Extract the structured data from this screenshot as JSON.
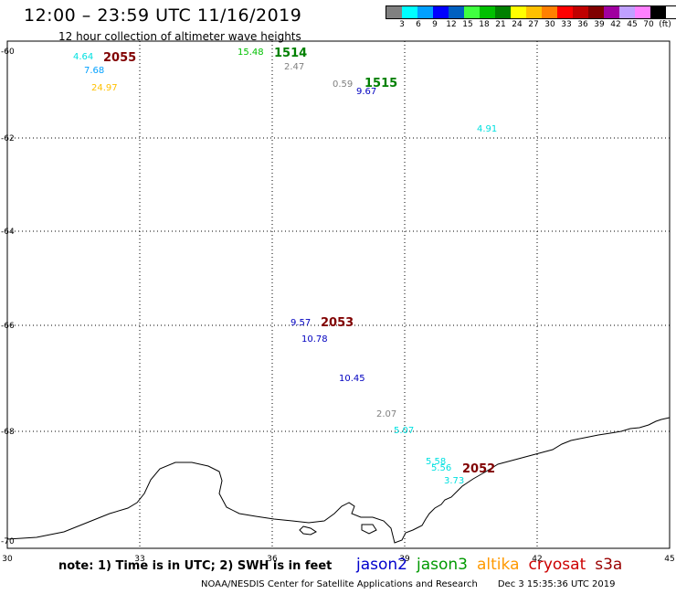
{
  "header": {
    "title": "12:00 – 23:59 UTC 11/16/2019",
    "subtitle": "12 hour collection of altimeter wave heights"
  },
  "legend": {
    "colors": [
      "#808080",
      "#00ffff",
      "#00a0ff",
      "#0000ff",
      "#0060c0",
      "#40ff40",
      "#00c000",
      "#008000",
      "#ffff00",
      "#ffc000",
      "#ff8000",
      "#ff0000",
      "#c00000",
      "#800000",
      "#a000a0",
      "#c0a0ff",
      "#ff80ff",
      "#000000"
    ],
    "labels": [
      "3",
      "6",
      "9",
      "12",
      "15",
      "18",
      "21",
      "24",
      "27",
      "30",
      "33",
      "36",
      "39",
      "42",
      "45",
      "70",
      "(ft)"
    ]
  },
  "map": {
    "lon_ticks": [
      "30",
      "33",
      "36",
      "39",
      "42",
      "45"
    ],
    "lat_ticks": [
      "-60",
      "-62",
      "-64",
      "-66",
      "-68",
      "-70"
    ]
  },
  "observations": [
    {
      "text": "4.64",
      "color": "#00e0e0"
    },
    {
      "text": "7.68",
      "color": "#00a0ff"
    },
    {
      "text": "24.97",
      "color": "#ffc000"
    },
    {
      "text": "15.48",
      "color": "#00c000"
    },
    {
      "text": "2.47",
      "color": "#808080"
    },
    {
      "text": "0.59",
      "color": "#808080"
    },
    {
      "text": "9.67",
      "color": "#0000c0"
    },
    {
      "text": "4.91",
      "color": "#00e0e0"
    },
    {
      "text": "9.57",
      "color": "#0000c0"
    },
    {
      "text": "10.78",
      "color": "#0000c0"
    },
    {
      "text": "10.45",
      "color": "#0000c0"
    },
    {
      "text": "2.07",
      "color": "#808080"
    },
    {
      "text": "5.07",
      "color": "#00e0e0"
    },
    {
      "text": "5.58",
      "color": "#00e0e0"
    },
    {
      "text": "5.56",
      "color": "#00e0e0"
    },
    {
      "text": "3.73",
      "color": "#00e0e0"
    }
  ],
  "passes": [
    {
      "text": "2055",
      "color": "#800000"
    },
    {
      "text": "1514",
      "color": "#008000"
    },
    {
      "text": "1515",
      "color": "#008000"
    },
    {
      "text": "2053",
      "color": "#800000"
    },
    {
      "text": "2052",
      "color": "#800000"
    }
  ],
  "footer": {
    "note": "note: 1) Time is in UTC; 2) SWH is in feet",
    "satellites": [
      {
        "name": "jason2",
        "color": "#0000cc"
      },
      {
        "name": "jason3",
        "color": "#009900"
      },
      {
        "name": "altika",
        "color": "#ff9900"
      },
      {
        "name": "cryosat",
        "color": "#cc0000"
      },
      {
        "name": "s3a",
        "color": "#990000"
      }
    ],
    "credit": "NOAA/NESDIS Center for Satellite Applications and Research",
    "timestamp": "Dec  3 15:35:36 UTC 2019"
  }
}
